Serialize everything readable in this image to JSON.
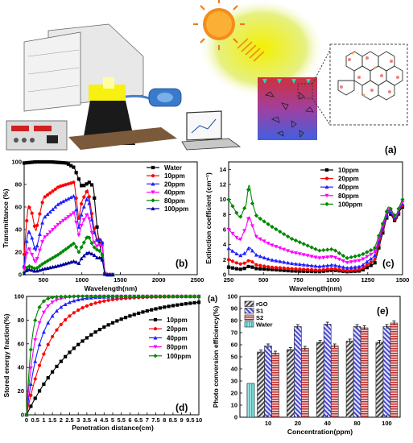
{
  "panel_labels": {
    "a": "(a)",
    "b": "(b)",
    "c": "(c)",
    "d": "(d)",
    "e": "(e)",
    "e_small": "(a)"
  },
  "colors": {
    "water": "#000000",
    "10ppm": "#ff0000",
    "20ppm": "#1f1fff",
    "40ppm": "#ff00ff",
    "80ppm": "#008800",
    "100ppm": "#000099",
    "c_10": "#000000",
    "c_20": "#ff0000",
    "c_40": "#1f1fff",
    "c_80": "#ff00ff",
    "c_100": "#008800",
    "bar_rgo": "#555555",
    "bar_s1": "#6a6ad8",
    "bar_s2": "#c84a4a",
    "bar_water": "#40c8c8"
  },
  "chart_data": [
    {
      "id": "b",
      "type": "line",
      "xlabel": "Wavelength(nm)",
      "ylabel": "Transmittance (%)",
      "xlim": [
        250,
        2500
      ],
      "ylim": [
        0,
        100
      ],
      "xticks": [
        500,
        1000,
        1500,
        2000,
        2500
      ],
      "yticks": [
        0,
        20,
        40,
        60,
        80,
        100
      ],
      "series": [
        {
          "name": "Water",
          "colorKey": "water",
          "x": [
            250,
            400,
            600,
            800,
            900,
            1000,
            1100,
            1150,
            1200,
            1300,
            1400
          ],
          "y": [
            99,
            100,
            100,
            99,
            95,
            78,
            82,
            78,
            40,
            0,
            0
          ]
        },
        {
          "name": "10ppm",
          "colorKey": "10ppm",
          "x": [
            250,
            300,
            350,
            400,
            500,
            700,
            900,
            960,
            1000,
            1080,
            1150,
            1200,
            1260,
            1300,
            1400
          ],
          "y": [
            18,
            62,
            55,
            38,
            68,
            78,
            82,
            50,
            65,
            76,
            45,
            30,
            32,
            0,
            0
          ]
        },
        {
          "name": "20ppm",
          "colorKey": "20ppm",
          "x": [
            250,
            300,
            350,
            400,
            500,
            700,
            900,
            960,
            1000,
            1080,
            1150,
            1200,
            1260,
            1300,
            1400
          ],
          "y": [
            8,
            40,
            33,
            20,
            50,
            63,
            70,
            42,
            55,
            70,
            40,
            30,
            32,
            0,
            0
          ]
        },
        {
          "name": "40ppm",
          "colorKey": "40ppm",
          "x": [
            250,
            300,
            350,
            400,
            500,
            700,
            900,
            960,
            1000,
            1080,
            1150,
            1200,
            1260,
            1300,
            1400
          ],
          "y": [
            5,
            25,
            18,
            10,
            32,
            45,
            55,
            35,
            45,
            55,
            30,
            25,
            28,
            0,
            0
          ]
        },
        {
          "name": "80ppm",
          "colorKey": "80ppm",
          "x": [
            250,
            300,
            400,
            500,
            700,
            900,
            960,
            1000,
            1080,
            1150,
            1200,
            1260,
            1300,
            1400
          ],
          "y": [
            2,
            8,
            5,
            10,
            18,
            28,
            20,
            25,
            35,
            25,
            22,
            20,
            0,
            0
          ]
        },
        {
          "name": "100ppm",
          "colorKey": "100ppm",
          "x": [
            250,
            300,
            400,
            500,
            700,
            900,
            960,
            1000,
            1080,
            1150,
            1200,
            1260,
            1300,
            1400
          ],
          "y": [
            1,
            5,
            3,
            5,
            8,
            12,
            10,
            15,
            20,
            18,
            15,
            15,
            0,
            0
          ]
        }
      ]
    },
    {
      "id": "c",
      "type": "line",
      "xlabel": "Wavelength(nm)",
      "ylabel": "Extinction coefficient (cm⁻¹)",
      "xlim": [
        250,
        1500
      ],
      "ylim": [
        0,
        15
      ],
      "xticks": [
        250,
        500,
        750,
        1000,
        1250,
        1500
      ],
      "yticks": [
        0,
        2,
        4,
        6,
        8,
        10,
        12,
        14
      ],
      "series": [
        {
          "name": "10ppm",
          "colorKey": "c_10",
          "x": [
            250,
            330,
            380,
            400,
            420,
            450,
            550,
            700,
            900,
            1000,
            1100,
            1200,
            1300,
            1400,
            1450,
            1480,
            1500
          ],
          "y": [
            1.0,
            0.7,
            0.9,
            1.2,
            1.0,
            0.8,
            0.7,
            0.5,
            0.4,
            0.6,
            0.4,
            0.5,
            1.5,
            8.5,
            7.0,
            8.5,
            9.0
          ]
        },
        {
          "name": "20ppm",
          "colorKey": "c_20",
          "x": [
            250,
            330,
            380,
            400,
            420,
            450,
            550,
            700,
            900,
            1000,
            1100,
            1200,
            1300,
            1400,
            1450,
            1480,
            1500
          ],
          "y": [
            2.0,
            1.4,
            1.6,
            2.0,
            1.7,
            1.3,
            1.0,
            0.8,
            0.6,
            0.8,
            0.5,
            0.7,
            2.0,
            8.7,
            7.2,
            8.7,
            9.2
          ]
        },
        {
          "name": "40ppm",
          "colorKey": "c_40",
          "x": [
            250,
            330,
            380,
            400,
            420,
            450,
            550,
            700,
            900,
            1000,
            1100,
            1200,
            1300,
            1400,
            1450,
            1480,
            1500
          ],
          "y": [
            3.5,
            2.5,
            3.0,
            3.8,
            3.2,
            2.6,
            2.0,
            1.5,
            1.1,
            1.3,
            0.9,
            1.1,
            2.5,
            8.8,
            7.3,
            8.8,
            9.4
          ]
        },
        {
          "name": "80ppm",
          "colorKey": "c_80",
          "x": [
            250,
            330,
            380,
            400,
            420,
            450,
            550,
            700,
            900,
            1000,
            1100,
            1200,
            1300,
            1400,
            1450,
            1480,
            1500
          ],
          "y": [
            6.0,
            4.5,
            6.5,
            8.0,
            6.5,
            5.0,
            4.0,
            3.0,
            2.2,
            2.4,
            1.6,
            1.9,
            3.0,
            9.0,
            7.5,
            9.0,
            9.6
          ]
        },
        {
          "name": "100ppm",
          "colorKey": "c_100",
          "x": [
            250,
            330,
            380,
            400,
            420,
            450,
            550,
            700,
            900,
            1000,
            1100,
            1200,
            1300,
            1400,
            1450,
            1480,
            1500
          ],
          "y": [
            10.0,
            7.5,
            9.5,
            12.5,
            9.5,
            7.8,
            6.5,
            4.8,
            3.2,
            3.4,
            2.2,
            2.6,
            3.5,
            9.2,
            7.7,
            9.2,
            10.0
          ]
        }
      ]
    },
    {
      "id": "d",
      "type": "line",
      "xlabel": "Penetration distance(cm)",
      "ylabel": "Stored energy fraction(%)",
      "xlim": [
        0,
        10
      ],
      "ylim": [
        0,
        100
      ],
      "xticks": [
        0,
        0.5,
        1,
        1.5,
        2,
        2.5,
        3,
        3.5,
        4,
        4.5,
        5,
        5.5,
        6,
        6.5,
        7,
        7.5,
        8,
        8.5,
        9,
        9.5,
        10
      ],
      "xtick_labels": [
        "0",
        "0.5",
        "1",
        "1.5",
        "2",
        "2.5",
        "3",
        "3.5",
        "4",
        "4.5",
        "5",
        "5.5",
        "6",
        "6.5",
        "7",
        "7.5",
        "8",
        "8.5",
        "9",
        "9.5",
        "10"
      ],
      "yticks": [
        0,
        20,
        40,
        60,
        80,
        100
      ],
      "series": [
        {
          "name": "10ppm",
          "colorKey": "c_10",
          "k": 0.3
        },
        {
          "name": "20ppm",
          "colorKey": "c_20",
          "k": 0.72
        },
        {
          "name": "40ppm",
          "colorKey": "c_40",
          "k": 1.2
        },
        {
          "name": "80ppm",
          "colorKey": "c_80",
          "k": 2.0
        },
        {
          "name": "100ppm",
          "colorKey": "c_100",
          "k": 3.2
        }
      ]
    },
    {
      "id": "e",
      "type": "bar",
      "xlabel": "Concentration(ppm)",
      "ylabel": "Photo conversion efficiency(%)",
      "ylim": [
        0,
        100
      ],
      "yticks": [
        0,
        10,
        20,
        30,
        40,
        50,
        60,
        70,
        80,
        90,
        100
      ],
      "categories": [
        "10",
        "20",
        "40",
        "80",
        "100"
      ],
      "series": [
        {
          "name": "rGO",
          "colorKey": "bar_rgo",
          "values": [
            54,
            56,
            62,
            63,
            62
          ]
        },
        {
          "name": "S1",
          "colorKey": "bar_s1",
          "values": [
            59,
            75,
            77,
            75,
            75
          ]
        },
        {
          "name": "S2",
          "colorKey": "bar_s2",
          "values": [
            53,
            57,
            59,
            74,
            78
          ]
        }
      ],
      "water": {
        "name": "Water",
        "colorKey": "bar_water",
        "value": 28
      }
    }
  ]
}
